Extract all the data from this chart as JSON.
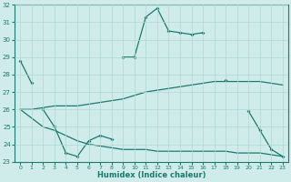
{
  "xlabel": "Humidex (Indice chaleur)",
  "x": [
    0,
    1,
    2,
    3,
    4,
    5,
    6,
    7,
    8,
    9,
    10,
    11,
    12,
    13,
    14,
    15,
    16,
    17,
    18,
    19,
    20,
    21,
    22,
    23
  ],
  "line1": [
    28.8,
    27.5,
    null,
    null,
    null,
    null,
    null,
    null,
    null,
    29.0,
    29.0,
    31.3,
    31.8,
    30.5,
    30.4,
    30.3,
    30.4,
    null,
    27.7,
    null,
    null,
    null,
    null,
    null
  ],
  "line2": [
    null,
    null,
    26.0,
    25.0,
    23.5,
    23.3,
    24.2,
    24.5,
    24.3,
    null,
    null,
    null,
    null,
    null,
    null,
    null,
    null,
    null,
    null,
    null,
    25.9,
    24.8,
    23.7,
    23.3
  ],
  "line3": [
    26.0,
    26.0,
    26.1,
    26.2,
    26.2,
    26.2,
    26.3,
    26.4,
    26.5,
    26.6,
    26.8,
    27.0,
    27.1,
    27.2,
    27.3,
    27.4,
    27.5,
    27.6,
    27.6,
    27.6,
    27.6,
    27.6,
    27.5,
    27.4
  ],
  "line4": [
    26.0,
    25.5,
    25.0,
    24.8,
    24.5,
    24.2,
    24.0,
    23.9,
    23.8,
    23.7,
    23.7,
    23.7,
    23.6,
    23.6,
    23.6,
    23.6,
    23.6,
    23.6,
    23.6,
    23.5,
    23.5,
    23.5,
    23.4,
    23.3
  ],
  "line_color": "#1a7a6e",
  "bg_color": "#d0ecea",
  "grid_color": "#b0d8d4",
  "ylim": [
    23,
    32
  ],
  "yticks": [
    23,
    24,
    25,
    26,
    27,
    28,
    29,
    30,
    31,
    32
  ],
  "xticks": [
    0,
    1,
    2,
    3,
    4,
    5,
    6,
    7,
    8,
    9,
    10,
    11,
    12,
    13,
    14,
    15,
    16,
    17,
    18,
    19,
    20,
    21,
    22,
    23
  ]
}
